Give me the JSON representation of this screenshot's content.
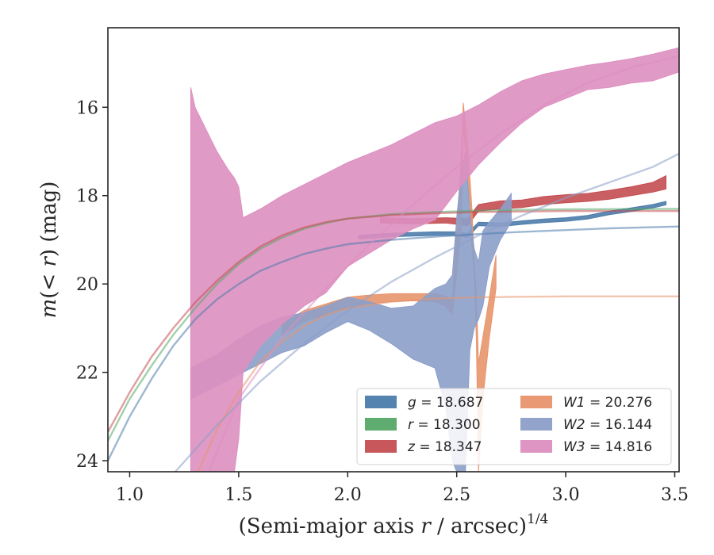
{
  "chart_data": {
    "type": "line",
    "xlabel": "(Semi-major axis r / arcsec)",
    "xlabel_italic_part": "r",
    "xlabel_exponent": "1/4",
    "ylabel": "m(< r) (mag)",
    "xlim": [
      0.9,
      3.52
    ],
    "ylim": [
      24.25,
      14.2
    ],
    "y_inverted": true,
    "xticks": [
      1.0,
      1.5,
      2.0,
      2.5,
      3.0,
      3.5
    ],
    "xtick_labels": [
      "1.0",
      "1.5",
      "2.0",
      "2.5",
      "3.0",
      "3.5"
    ],
    "yticks": [
      16,
      18,
      20,
      22,
      24
    ],
    "ytick_labels": [
      "16",
      "18",
      "20",
      "22",
      "24"
    ],
    "grid": false,
    "legend_position": "lower-right",
    "series": [
      {
        "name": "g",
        "label_value": "= 18.687",
        "color": "#4c7cab",
        "model_curve": [
          [
            0.9,
            24.0
          ],
          [
            1.0,
            23.0
          ],
          [
            1.1,
            22.15
          ],
          [
            1.2,
            21.4
          ],
          [
            1.3,
            20.8
          ],
          [
            1.4,
            20.35
          ],
          [
            1.5,
            20.0
          ],
          [
            1.6,
            19.7
          ],
          [
            1.7,
            19.5
          ],
          [
            1.8,
            19.32
          ],
          [
            1.9,
            19.2
          ],
          [
            2.0,
            19.1
          ],
          [
            2.2,
            19.0
          ],
          [
            2.4,
            18.93
          ],
          [
            2.6,
            18.87
          ],
          [
            2.8,
            18.82
          ],
          [
            3.0,
            18.78
          ],
          [
            3.2,
            18.74
          ],
          [
            3.52,
            18.7
          ]
        ],
        "data_band": [
          [
            2.05,
            18.9,
            18.98
          ],
          [
            2.2,
            18.85,
            18.93
          ],
          [
            2.4,
            18.82,
            18.9
          ],
          [
            2.5,
            18.82,
            18.9
          ],
          [
            2.55,
            18.85,
            18.95
          ],
          [
            2.6,
            18.6,
            18.68
          ],
          [
            2.7,
            18.62,
            18.7
          ],
          [
            2.8,
            18.57,
            18.65
          ],
          [
            2.9,
            18.53,
            18.61
          ],
          [
            3.0,
            18.5,
            18.58
          ],
          [
            3.1,
            18.45,
            18.53
          ],
          [
            3.2,
            18.35,
            18.43
          ],
          [
            3.3,
            18.28,
            18.36
          ],
          [
            3.4,
            18.2,
            18.28
          ],
          [
            3.46,
            18.13,
            18.21
          ]
        ]
      },
      {
        "name": "r",
        "label_value": "= 18.300",
        "color": "#55a868",
        "model_curve": [
          [
            0.9,
            23.55
          ],
          [
            1.0,
            22.6
          ],
          [
            1.1,
            21.85
          ],
          [
            1.2,
            21.15
          ],
          [
            1.3,
            20.55
          ],
          [
            1.4,
            20.0
          ],
          [
            1.5,
            19.55
          ],
          [
            1.6,
            19.2
          ],
          [
            1.7,
            18.95
          ],
          [
            1.8,
            18.75
          ],
          [
            1.9,
            18.62
          ],
          [
            2.0,
            18.52
          ],
          [
            2.2,
            18.42
          ],
          [
            2.4,
            18.37
          ],
          [
            2.6,
            18.34
          ],
          [
            2.8,
            18.32
          ],
          [
            3.0,
            18.31
          ],
          [
            3.52,
            18.3
          ]
        ]
      },
      {
        "name": "z",
        "label_value": "= 18.347",
        "color": "#c44e52",
        "model_curve": [
          [
            0.9,
            23.35
          ],
          [
            1.0,
            22.45
          ],
          [
            1.1,
            21.65
          ],
          [
            1.2,
            21.0
          ],
          [
            1.3,
            20.42
          ],
          [
            1.4,
            19.93
          ],
          [
            1.5,
            19.5
          ],
          [
            1.6,
            19.15
          ],
          [
            1.7,
            18.9
          ],
          [
            1.8,
            18.72
          ],
          [
            1.9,
            18.6
          ],
          [
            2.0,
            18.52
          ],
          [
            2.2,
            18.44
          ],
          [
            2.4,
            18.4
          ],
          [
            2.6,
            18.37
          ],
          [
            2.8,
            18.36
          ],
          [
            3.0,
            18.35
          ],
          [
            3.52,
            18.35
          ]
        ],
        "data_band": [
          [
            2.15,
            18.5,
            18.62
          ],
          [
            2.3,
            18.52,
            18.64
          ],
          [
            2.45,
            18.5,
            18.62
          ],
          [
            2.55,
            18.52,
            18.68
          ],
          [
            2.6,
            18.2,
            18.35
          ],
          [
            2.7,
            18.12,
            18.3
          ],
          [
            2.8,
            18.1,
            18.27
          ],
          [
            2.9,
            18.02,
            18.2
          ],
          [
            3.0,
            17.98,
            18.16
          ],
          [
            3.1,
            17.95,
            18.13
          ],
          [
            3.2,
            17.88,
            18.08
          ],
          [
            3.3,
            17.8,
            18.0
          ],
          [
            3.4,
            17.7,
            17.92
          ],
          [
            3.46,
            17.55,
            17.85
          ]
        ]
      },
      {
        "name": "W1",
        "label_value": "= 20.276",
        "color": "#e8956d",
        "model_curve": [
          [
            1.3,
            24.4
          ],
          [
            1.4,
            23.3
          ],
          [
            1.5,
            22.45
          ],
          [
            1.6,
            21.75
          ],
          [
            1.7,
            21.3
          ],
          [
            1.8,
            20.95
          ],
          [
            1.9,
            20.7
          ],
          [
            2.0,
            20.55
          ],
          [
            2.2,
            20.4
          ],
          [
            2.4,
            20.33
          ],
          [
            2.6,
            20.3
          ],
          [
            3.0,
            20.28
          ],
          [
            3.52,
            20.28
          ]
        ],
        "data_band": [
          [
            1.7,
            20.9,
            21.15
          ],
          [
            1.8,
            20.6,
            20.85
          ],
          [
            1.9,
            20.45,
            20.7
          ],
          [
            2.0,
            20.3,
            20.55
          ],
          [
            2.1,
            20.25,
            20.45
          ],
          [
            2.2,
            20.22,
            20.4
          ],
          [
            2.3,
            20.22,
            20.38
          ],
          [
            2.4,
            20.22,
            20.4
          ],
          [
            2.45,
            20.28,
            20.5
          ],
          [
            2.48,
            20.35,
            20.7
          ],
          [
            2.52,
            17.2,
            18.8
          ],
          [
            2.53,
            15.9,
            16.4
          ],
          [
            2.55,
            16.8,
            17.6
          ],
          [
            2.57,
            18.3,
            19.2
          ],
          [
            2.58,
            19.5,
            19.8
          ],
          [
            2.59,
            20.2,
            21.2
          ],
          [
            2.6,
            21.8,
            24.25
          ],
          [
            2.62,
            21.2,
            22.6
          ],
          [
            2.65,
            20.3,
            21.2
          ],
          [
            2.68,
            19.35,
            20.1
          ]
        ]
      },
      {
        "name": "W2",
        "label_value": "= 16.144",
        "color": "#8c9fc9",
        "model_curve": [
          [
            1.2,
            24.3
          ],
          [
            1.4,
            23.2
          ],
          [
            1.6,
            22.2
          ],
          [
            1.8,
            21.35
          ],
          [
            2.0,
            20.6
          ],
          [
            2.2,
            19.95
          ],
          [
            2.4,
            19.4
          ],
          [
            2.6,
            18.9
          ],
          [
            2.8,
            18.45
          ],
          [
            3.0,
            18.05
          ],
          [
            3.2,
            17.7
          ],
          [
            3.4,
            17.35
          ],
          [
            3.52,
            17.05
          ]
        ],
        "data_band": [
          [
            1.28,
            21.9,
            22.6
          ],
          [
            1.4,
            21.6,
            22.3
          ],
          [
            1.5,
            21.25,
            22.05
          ],
          [
            1.6,
            20.95,
            21.8
          ],
          [
            1.7,
            20.75,
            21.55
          ],
          [
            1.8,
            20.65,
            21.4
          ],
          [
            1.9,
            20.5,
            21.1
          ],
          [
            2.0,
            20.3,
            20.85
          ],
          [
            2.1,
            20.4,
            21.05
          ],
          [
            2.2,
            20.55,
            21.35
          ],
          [
            2.3,
            20.5,
            21.7
          ],
          [
            2.4,
            20.1,
            21.9
          ],
          [
            2.45,
            20.0,
            22.8
          ],
          [
            2.48,
            19.8,
            24.0
          ],
          [
            2.5,
            18.5,
            24.25
          ],
          [
            2.52,
            17.5,
            24.25
          ],
          [
            2.54,
            17.0,
            24.25
          ],
          [
            2.56,
            18.4,
            21.5
          ],
          [
            2.58,
            19.2,
            21.0
          ],
          [
            2.6,
            19.5,
            20.8
          ],
          [
            2.62,
            18.8,
            20.5
          ],
          [
            2.65,
            18.6,
            19.6
          ],
          [
            2.7,
            18.3,
            19.0
          ],
          [
            2.75,
            17.95,
            18.6
          ]
        ]
      },
      {
        "name": "W3",
        "label_value": "= 14.816",
        "color": "#dd8fc0",
        "model_curve": [
          [
            1.35,
            24.4
          ],
          [
            1.5,
            22.6
          ],
          [
            1.7,
            21.2
          ],
          [
            1.9,
            20.1
          ],
          [
            2.1,
            19.1
          ],
          [
            2.3,
            18.2
          ],
          [
            2.5,
            17.35
          ],
          [
            2.7,
            16.6
          ],
          [
            2.9,
            15.95
          ],
          [
            3.1,
            15.45
          ],
          [
            3.3,
            15.1
          ],
          [
            3.52,
            14.85
          ]
        ],
        "data_band": [
          [
            1.28,
            15.55,
            24.25
          ],
          [
            1.3,
            16.0,
            24.25
          ],
          [
            1.4,
            17.0,
            24.25
          ],
          [
            1.45,
            17.4,
            24.25
          ],
          [
            1.48,
            17.6,
            24.25
          ],
          [
            1.5,
            17.8,
            23.5
          ],
          [
            1.52,
            18.5,
            22.0
          ],
          [
            1.6,
            18.3,
            21.4
          ],
          [
            1.7,
            18.0,
            20.9
          ],
          [
            1.8,
            17.75,
            20.5
          ],
          [
            1.9,
            17.5,
            20.2
          ],
          [
            2.0,
            17.25,
            19.6
          ],
          [
            2.1,
            17.05,
            19.3
          ],
          [
            2.2,
            16.85,
            19.0
          ],
          [
            2.3,
            16.6,
            18.75
          ],
          [
            2.4,
            16.35,
            18.55
          ],
          [
            2.5,
            16.2,
            17.9
          ],
          [
            2.6,
            15.95,
            17.3
          ],
          [
            2.7,
            15.65,
            16.8
          ],
          [
            2.8,
            15.4,
            16.35
          ],
          [
            2.9,
            15.25,
            16.0
          ],
          [
            3.0,
            15.15,
            15.8
          ],
          [
            3.1,
            15.05,
            15.6
          ],
          [
            3.2,
            14.98,
            15.55
          ],
          [
            3.3,
            14.9,
            15.45
          ],
          [
            3.4,
            14.8,
            15.4
          ],
          [
            3.52,
            14.65,
            15.2
          ]
        ]
      }
    ]
  }
}
